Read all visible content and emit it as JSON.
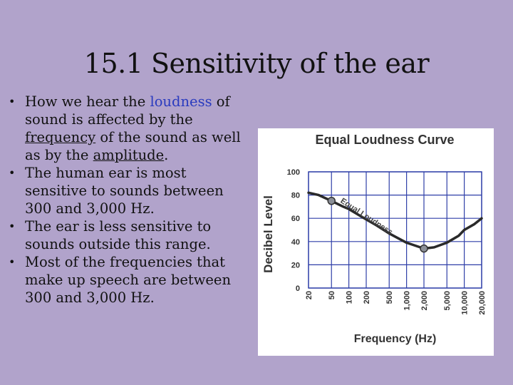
{
  "slide": {
    "title": "15.1 Sensitivity of the ear",
    "bullets": [
      {
        "parts": [
          {
            "text": "How we hear the "
          },
          {
            "text": "loudness",
            "style": "blue"
          },
          {
            "text": " of sound is affected by the "
          },
          {
            "text": "frequency",
            "style": "underline"
          },
          {
            "text": " of the sound as well as by the "
          },
          {
            "text": "amplitude",
            "style": "underline"
          },
          {
            "text": "."
          }
        ]
      },
      {
        "parts": [
          {
            "text": "The human ear is most sensitive to sounds between 300 and 3,000 Hz."
          }
        ]
      },
      {
        "parts": [
          {
            "text": "The ear is less sensitive to sounds outside this range."
          }
        ]
      },
      {
        "parts": [
          {
            "text": "Most of the frequencies that make up speech are between 300 and 3,000 Hz."
          }
        ]
      }
    ],
    "bullet_symbol": "•"
  },
  "colors": {
    "background": "#b1a3cb",
    "link_blue": "#2a3bbf",
    "grid": "#2f3fa8",
    "curve": "#2a2a2a",
    "marker": "#8b8f97"
  },
  "chart_data": {
    "type": "line",
    "title": "Equal Loudness Curve",
    "xlabel": "Frequency (Hz)",
    "ylabel": "Decibel Level",
    "x_scale": "log",
    "x_ticks": [
      "20",
      "50",
      "100",
      "200",
      "500",
      "1,000",
      "2,000",
      "5,000",
      "10,000",
      "20,000"
    ],
    "y_ticks": [
      "0",
      "20",
      "40",
      "60",
      "80",
      "100"
    ],
    "ylim": [
      0,
      100
    ],
    "xlim": [
      20,
      20000
    ],
    "grid": true,
    "curve_label": "Equal Loudness",
    "series": [
      {
        "x": [
          20,
          30,
          50,
          80,
          100,
          200,
          300,
          500,
          1000,
          2000,
          3000,
          5000,
          8000,
          10000,
          15000,
          20000
        ],
        "y": [
          82,
          80,
          75,
          70,
          68,
          59,
          54,
          47,
          39,
          34,
          35,
          39,
          45,
          50,
          55,
          60
        ]
      }
    ],
    "markers": [
      {
        "x": 50,
        "y": 75
      },
      {
        "x": 2000,
        "y": 34
      }
    ]
  }
}
